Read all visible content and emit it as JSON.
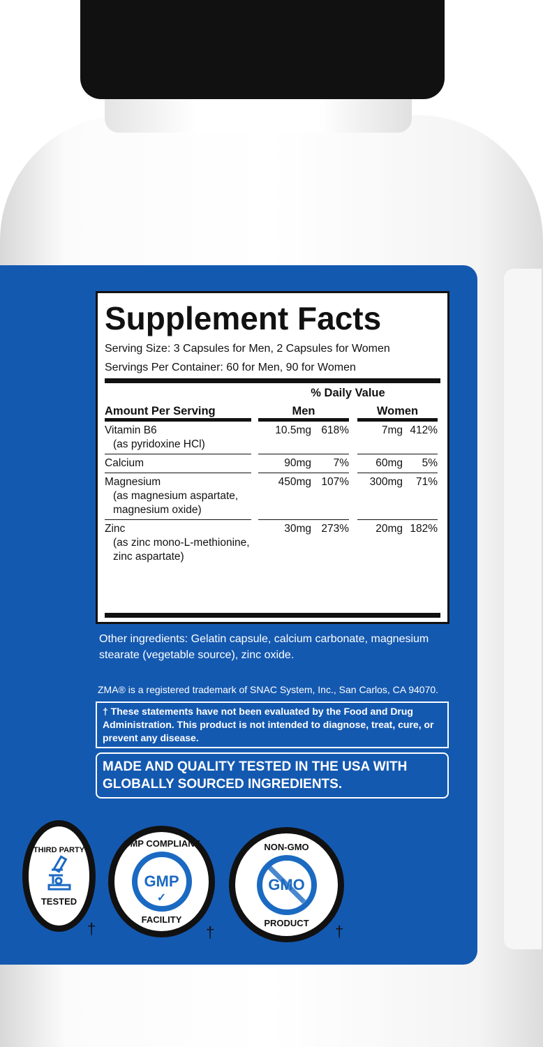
{
  "facts": {
    "title": "Supplement Facts",
    "serving_size": "Serving Size: 3 Capsules for Men, 2 Capsules for Women",
    "servings_per_container": "Servings Per Container: 60 for Men, 90 for Women",
    "daily_value_header": "% Daily Value",
    "amount_header": "Amount Per Serving",
    "men_header": "Men",
    "women_header": "Women",
    "rows": [
      {
        "name": "Vitamin B6",
        "detail": "(as pyridoxine HCl)",
        "men_amt": "10.5mg",
        "men_dv": "618%",
        "women_amt": "7mg",
        "women_dv": "412%"
      },
      {
        "name": "Calcium",
        "detail": "",
        "men_amt": "90mg",
        "men_dv": "7%",
        "women_amt": "60mg",
        "women_dv": "5%"
      },
      {
        "name": "Magnesium",
        "detail": "(as magnesium aspartate, magnesium oxide)",
        "men_amt": "450mg",
        "men_dv": "107%",
        "women_amt": "300mg",
        "women_dv": "71%"
      },
      {
        "name": "Zinc",
        "detail": "(as zinc mono-L-methionine, zinc aspartate)",
        "men_amt": "30mg",
        "men_dv": "273%",
        "women_amt": "20mg",
        "women_dv": "182%"
      }
    ]
  },
  "other_ingredients": "Other ingredients: Gelatin capsule, calcium carbonate, magnesium stearate (vegetable source), zinc oxide.",
  "trademark": "ZMA® is a registered trademark of SNAC System, Inc., San Carlos, CA 94070.",
  "fda_disclaimer": "† These statements have not been evaluated by the Food and Drug Administration. This product is not intended to diagnose, treat, cure, or prevent any disease.",
  "made_in_usa": "MADE AND QUALITY TESTED IN THE USA WITH GLOBALLY SOURCED INGREDIENTS.",
  "badges": [
    {
      "top": "THIRD PARTY",
      "center": "",
      "bottom": "TESTED",
      "icon": "microscope-icon"
    },
    {
      "top": "GMP COMPLIANT",
      "center": "GMP",
      "bottom": "FACILITY",
      "icon": "checkmark-icon"
    },
    {
      "top": "NON-GMO",
      "center": "GMO",
      "bottom": "PRODUCT",
      "icon": "prohibited-icon"
    }
  ],
  "dagger": "†",
  "colors": {
    "label_blue": "#1459b0",
    "badge_blue": "#1b6ac2",
    "cap": "#111111"
  }
}
